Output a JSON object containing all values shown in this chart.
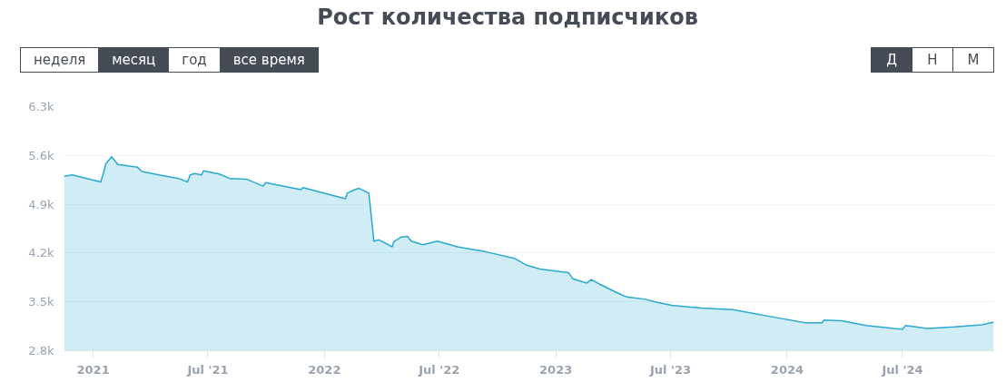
{
  "chart_data": {
    "type": "area",
    "title": "Рост количества подписчиков",
    "annotations": [
      "неделя",
      "месяц",
      "год",
      "все время",
      "Д",
      "Н",
      "М"
    ],
    "xlim": [
      "2020-11-16",
      "2024-11-22"
    ],
    "xticks": [
      {
        "value": "2021-01-01",
        "label": "2021"
      },
      {
        "value": "2021-07-01",
        "label": "Jul '21"
      },
      {
        "value": "2022-01-01",
        "label": "2022"
      },
      {
        "value": "2022-07-01",
        "label": "Jul '22"
      },
      {
        "value": "2023-01-01",
        "label": "2023"
      },
      {
        "value": "2023-07-01",
        "label": "Jul '23"
      },
      {
        "value": "2024-01-01",
        "label": "2024"
      },
      {
        "value": "2024-07-01",
        "label": "Jul '24"
      }
    ],
    "ylim": [
      2800,
      6300
    ],
    "yticks": [
      {
        "value": 2800,
        "label": "2.8k"
      },
      {
        "value": 3500,
        "label": "3.5k"
      },
      {
        "value": 4200,
        "label": "4.2k"
      },
      {
        "value": 4900,
        "label": "4.9k"
      },
      {
        "value": 5600,
        "label": "5.6k"
      },
      {
        "value": 6300,
        "label": "6.3k"
      }
    ],
    "grid": "y",
    "x": [
      "2020-11-16",
      "2020-11-29",
      "2021-01-13",
      "2021-01-17",
      "2021-01-21",
      "2021-01-30",
      "2021-02-09",
      "2021-03-12",
      "2021-03-19",
      "2021-04-15",
      "2021-05-16",
      "2021-05-30",
      "2021-06-03",
      "2021-06-10",
      "2021-06-21",
      "2021-06-24",
      "2021-07-20",
      "2021-08-04",
      "2021-08-31",
      "2021-09-26",
      "2021-09-30",
      "2021-11-25",
      "2021-11-28",
      "2022-02-03",
      "2022-02-06",
      "2022-02-15",
      "2022-02-24",
      "2022-03-12",
      "2022-03-20",
      "2022-03-28",
      "2022-04-18",
      "2022-04-20",
      "2022-05-02",
      "2022-05-12",
      "2022-05-18",
      "2022-06-05",
      "2022-06-28",
      "2022-07-30",
      "2022-09-12",
      "2022-10-29",
      "2022-11-15",
      "2022-12-07",
      "2023-01-21",
      "2023-01-28",
      "2023-02-19",
      "2023-02-26",
      "2023-03-10",
      "2023-04-08",
      "2023-04-23",
      "2023-05-21",
      "2023-06-12",
      "2023-07-03",
      "2023-08-20",
      "2023-10-07",
      "2023-12-18",
      "2024-01-30",
      "2024-02-25",
      "2024-02-28",
      "2024-03-27",
      "2024-05-05",
      "2024-06-08",
      "2024-06-17",
      "2024-07-01",
      "2024-07-06",
      "2024-08-09",
      "2024-09-21",
      "2024-11-03",
      "2024-11-22"
    ],
    "series": [
      {
        "color": "#2aa9d0",
        "values": [
          5300,
          5320,
          5220,
          5340,
          5480,
          5580,
          5470,
          5430,
          5370,
          5320,
          5270,
          5220,
          5320,
          5340,
          5320,
          5380,
          5330,
          5270,
          5260,
          5160,
          5210,
          5110,
          5140,
          4980,
          5060,
          5100,
          5130,
          5060,
          4370,
          4390,
          4290,
          4360,
          4430,
          4440,
          4370,
          4320,
          4370,
          4290,
          4220,
          4120,
          4030,
          3970,
          3920,
          3830,
          3770,
          3820,
          3760,
          3630,
          3570,
          3540,
          3490,
          3450,
          3410,
          3390,
          3270,
          3200,
          3200,
          3240,
          3230,
          3160,
          3130,
          3120,
          3110,
          3160,
          3120,
          3140,
          3170,
          3210
        ]
      }
    ]
  }
}
